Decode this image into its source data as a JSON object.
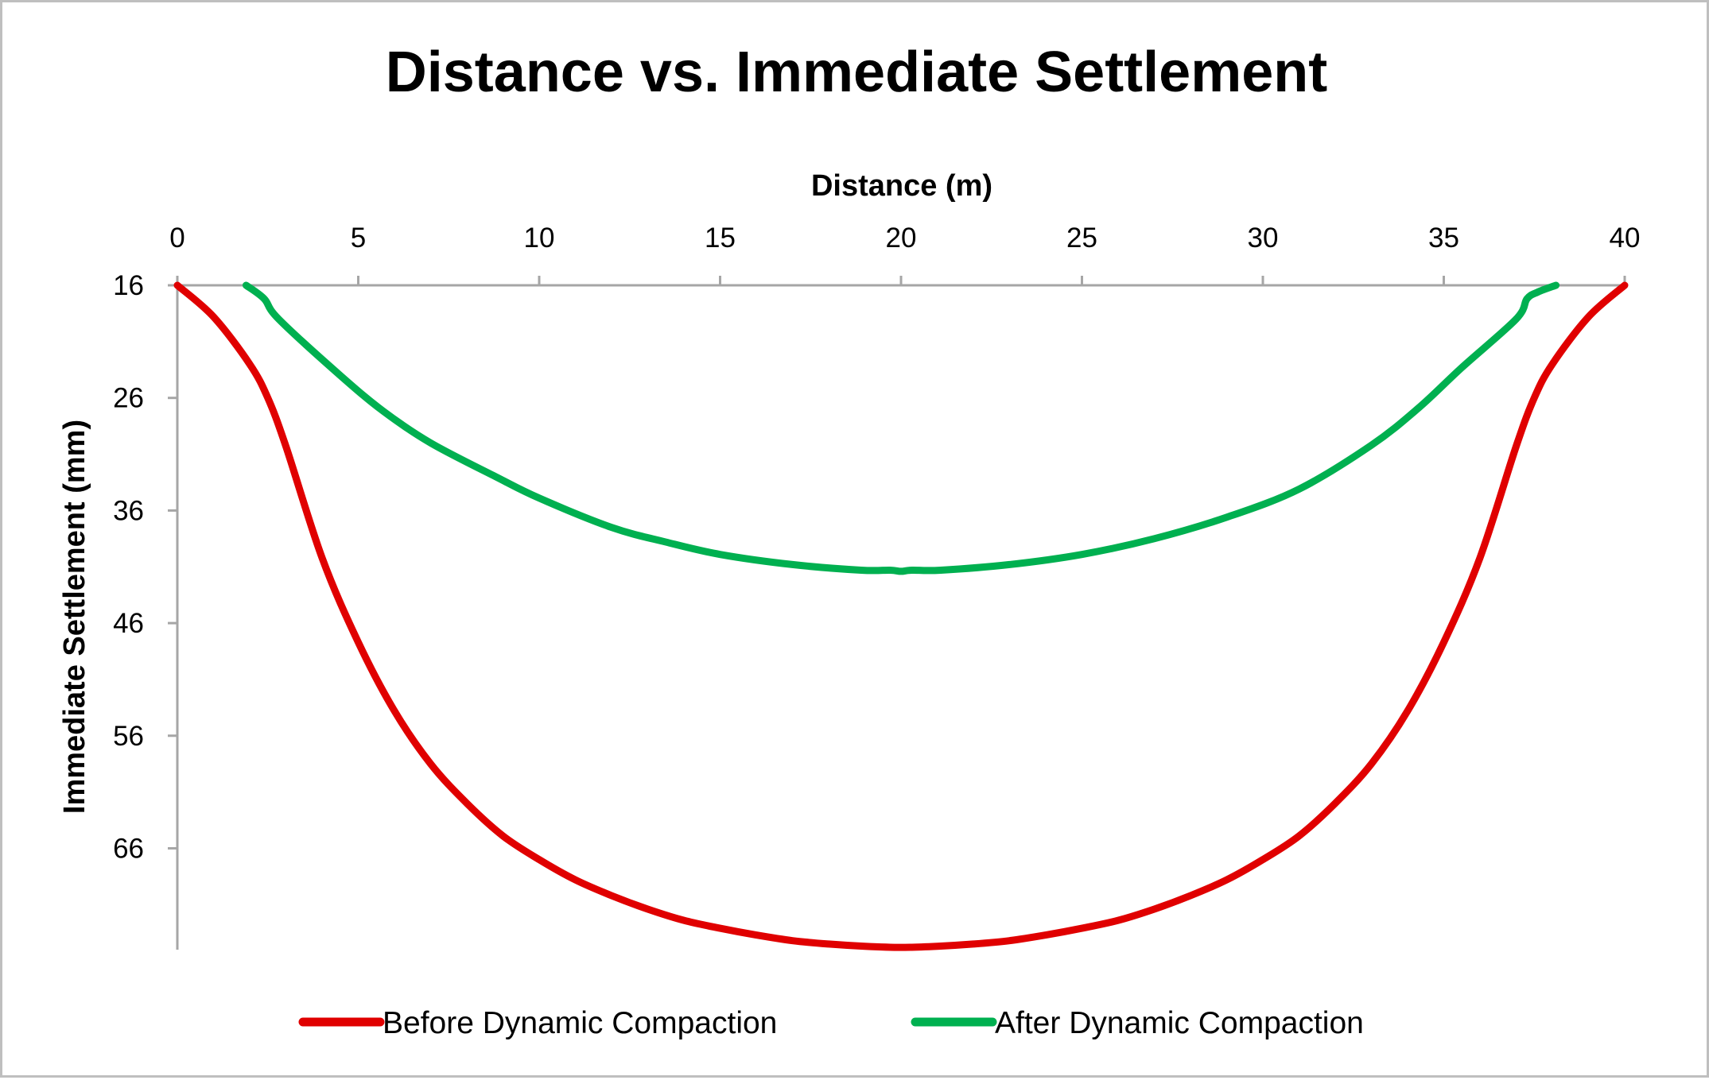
{
  "chart_data": {
    "type": "line",
    "title": "Distance vs. Immediate Settlement",
    "xlabel": "Distance (m)",
    "ylabel": "Immediate Settlement (mm)",
    "xlim": [
      0,
      40
    ],
    "ylim": [
      16,
      75
    ],
    "y_inverted": true,
    "x_axis_position": "top",
    "x_ticks": [
      0,
      5,
      10,
      15,
      20,
      25,
      30,
      35,
      40
    ],
    "y_ticks": [
      16,
      26,
      36,
      46,
      56,
      66
    ],
    "grid": false,
    "legend_position": "bottom",
    "series": [
      {
        "name": "Before Dynamic Compaction",
        "color": "#e00000",
        "x": [
          0,
          1,
          2,
          2.5,
          3,
          4,
          5,
          6,
          7,
          8,
          9,
          10,
          11,
          12,
          13,
          14,
          15,
          16,
          17,
          18,
          19,
          20,
          21,
          22,
          23,
          24,
          25,
          26,
          27,
          28,
          29,
          30,
          31,
          32,
          33,
          34,
          35,
          36,
          37,
          37.5,
          38,
          39,
          40
        ],
        "y": [
          16,
          18.8,
          23,
          26,
          30.3,
          40.2,
          47.7,
          53.8,
          58.5,
          62.0,
          64.9,
          67.0,
          68.8,
          70.2,
          71.4,
          72.4,
          73.1,
          73.7,
          74.2,
          74.5,
          74.7,
          74.8,
          74.7,
          74.5,
          74.2,
          73.7,
          73.1,
          72.4,
          71.4,
          70.2,
          68.8,
          67.0,
          64.9,
          62.0,
          58.5,
          53.8,
          47.7,
          40.2,
          30.3,
          26,
          23,
          18.8,
          16
        ]
      },
      {
        "name": "After Dynamic Compaction",
        "color": "#00b050",
        "x": [
          1.9,
          2.4,
          2.8,
          4.5,
          5.7,
          7,
          8.8,
          10,
          12,
          13.5,
          15,
          17,
          18.9,
          19.7,
          20,
          20.3,
          21.1,
          23,
          25,
          27,
          29,
          31,
          33,
          34.3,
          35.5,
          37,
          37.3,
          37.6,
          38.1
        ],
        "y": [
          16,
          17.2,
          19,
          24,
          27.2,
          30,
          33,
          34.9,
          37.5,
          38.8,
          39.9,
          40.8,
          41.3,
          41.3,
          41.4,
          41.3,
          41.3,
          40.8,
          39.9,
          38.5,
          36.6,
          34.1,
          30.2,
          26.9,
          23.3,
          19,
          17.2,
          16.6,
          16
        ]
      }
    ]
  }
}
